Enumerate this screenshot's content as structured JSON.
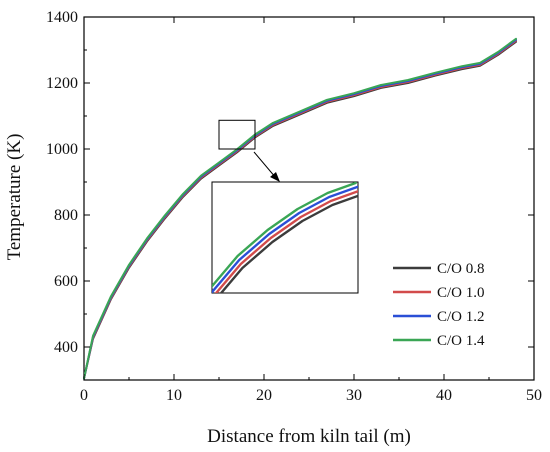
{
  "chart_data": {
    "type": "line",
    "xlabel": "Distance from kiln tail (m)",
    "ylabel": "Temperature (K)",
    "xlim": [
      0,
      50
    ],
    "ylim": [
      300,
      1400
    ],
    "x_ticks": [
      "0",
      "10",
      "20",
      "30",
      "40",
      "50"
    ],
    "y_ticks": [
      "400",
      "600",
      "800",
      "1000",
      "1200",
      "1400"
    ],
    "grid": false,
    "legend_position": "lower-right",
    "inset": {
      "type": "zoom",
      "source_x_range": [
        15,
        19
      ],
      "source_y_range": [
        1000,
        1087
      ]
    },
    "series": [
      {
        "name": "C/O 0.8",
        "color": "#3c3c3c",
        "offset": -6,
        "x": [
          0,
          1,
          3,
          5,
          7,
          9,
          11,
          13,
          15,
          17,
          19,
          21,
          24,
          27,
          30,
          33,
          36,
          39,
          42,
          44,
          46,
          48
        ],
        "y": [
          305,
          425,
          545,
          640,
          720,
          790,
          855,
          910,
          950,
          990,
          1035,
          1070,
          1105,
          1140,
          1160,
          1185,
          1200,
          1222,
          1242,
          1252,
          1285,
          1325
        ]
      },
      {
        "name": "C/O 1.0",
        "color": "#d24b4b",
        "offset": -2,
        "x": [
          0,
          1,
          3,
          5,
          7,
          9,
          11,
          13,
          15,
          17,
          19,
          21,
          24,
          27,
          30,
          33,
          36,
          39,
          42,
          44,
          46,
          48
        ],
        "y": [
          305,
          428,
          548,
          643,
          723,
          793,
          858,
          913,
          953,
          993,
          1038,
          1073,
          1108,
          1143,
          1163,
          1188,
          1203,
          1225,
          1245,
          1255,
          1288,
          1328
        ]
      },
      {
        "name": "C/O 1.2",
        "color": "#2a4fd6",
        "offset": 2,
        "x": [
          0,
          1,
          3,
          5,
          7,
          9,
          11,
          13,
          15,
          17,
          19,
          21,
          24,
          27,
          30,
          33,
          36,
          39,
          42,
          44,
          46,
          48
        ],
        "y": [
          305,
          431,
          551,
          646,
          726,
          796,
          861,
          916,
          956,
          996,
          1041,
          1076,
          1111,
          1146,
          1166,
          1191,
          1206,
          1228,
          1248,
          1258,
          1291,
          1331
        ]
      },
      {
        "name": "C/O 1.4",
        "color": "#3aa655",
        "offset": 6,
        "x": [
          0,
          1,
          3,
          5,
          7,
          9,
          11,
          13,
          15,
          17,
          19,
          21,
          24,
          27,
          30,
          33,
          36,
          39,
          42,
          44,
          46,
          48
        ],
        "y": [
          305,
          434,
          554,
          649,
          729,
          799,
          864,
          919,
          959,
          999,
          1044,
          1079,
          1114,
          1149,
          1169,
          1194,
          1209,
          1231,
          1251,
          1261,
          1294,
          1334
        ]
      }
    ]
  }
}
